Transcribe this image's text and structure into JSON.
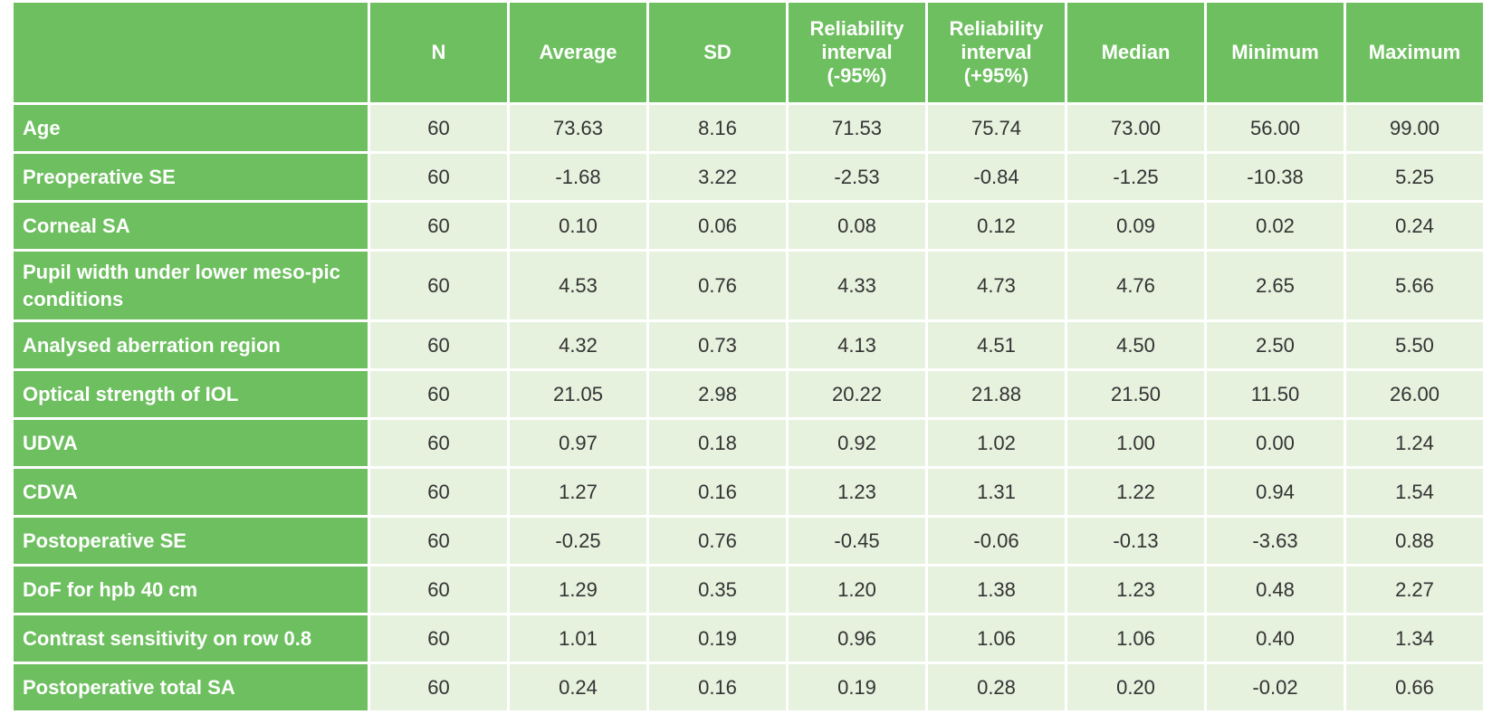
{
  "table": {
    "headers": [
      "",
      "N",
      "Average",
      "SD",
      "Reliability interval (-95%)",
      "Reliability interval (+95%)",
      "Median",
      "Minimum",
      "Maximum"
    ],
    "rows": [
      {
        "label": "Age",
        "values": [
          "60",
          "73.63",
          "8.16",
          "71.53",
          "75.74",
          "73.00",
          "56.00",
          "99.00"
        ]
      },
      {
        "label": "Preoperative SE",
        "values": [
          "60",
          "-1.68",
          "3.22",
          "-2.53",
          "-0.84",
          "-1.25",
          "-10.38",
          "5.25"
        ]
      },
      {
        "label": "Corneal SA",
        "values": [
          "60",
          "0.10",
          "0.06",
          "0.08",
          "0.12",
          "0.09",
          "0.02",
          "0.24"
        ]
      },
      {
        "label": "Pupil width under lower meso-pic conditions",
        "values": [
          "60",
          "4.53",
          "0.76",
          "4.33",
          "4.73",
          "4.76",
          "2.65",
          "5.66"
        ]
      },
      {
        "label": "Analysed aberration region",
        "values": [
          "60",
          "4.32",
          "0.73",
          "4.13",
          "4.51",
          "4.50",
          "2.50",
          "5.50"
        ]
      },
      {
        "label": "Optical strength of IOL",
        "values": [
          "60",
          "21.05",
          "2.98",
          "20.22",
          "21.88",
          "21.50",
          "11.50",
          "26.00"
        ]
      },
      {
        "label": "UDVA",
        "values": [
          "60",
          "0.97",
          "0.18",
          "0.92",
          "1.02",
          "1.00",
          "0.00",
          "1.24"
        ]
      },
      {
        "label": "CDVA",
        "values": [
          "60",
          "1.27",
          "0.16",
          "1.23",
          "1.31",
          "1.22",
          "0.94",
          "1.54"
        ]
      },
      {
        "label": "Postoperative SE",
        "values": [
          "60",
          "-0.25",
          "0.76",
          "-0.45",
          "-0.06",
          "-0.13",
          "-3.63",
          "0.88"
        ]
      },
      {
        "label": "DoF for hpb 40 cm",
        "values": [
          "60",
          "1.29",
          "0.35",
          "1.20",
          "1.38",
          "1.23",
          "0.48",
          "2.27"
        ]
      },
      {
        "label": "Contrast sensitivity on row 0.8",
        "values": [
          "60",
          "1.01",
          "0.19",
          "0.96",
          "1.06",
          "1.06",
          "0.40",
          "1.34"
        ]
      },
      {
        "label": "Postoperative total SA",
        "values": [
          "60",
          "0.24",
          "0.16",
          "0.19",
          "0.28",
          "0.20",
          "-0.02",
          "0.66"
        ]
      }
    ]
  }
}
